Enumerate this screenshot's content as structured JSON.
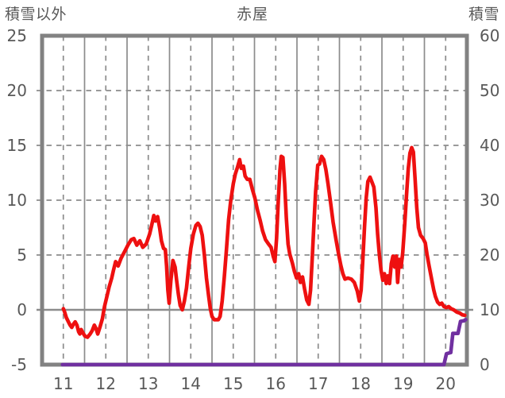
{
  "header": {
    "left_axis_label": "積雪以外",
    "title": "赤屋",
    "right_axis_label": "積雪"
  },
  "chart_data": {
    "type": "line",
    "title": "赤屋",
    "legend": "none",
    "x_axis": {
      "range": [
        11,
        21
      ],
      "tick_labels": [
        "11",
        "12",
        "13",
        "14",
        "15",
        "16",
        "17",
        "18",
        "19",
        "20"
      ],
      "tick_positions": [
        11.5,
        12.5,
        13.5,
        14.5,
        15.5,
        16.5,
        17.5,
        18.5,
        19.5,
        20.5
      ]
    },
    "left_axis": {
      "label": "積雪以外",
      "range": [
        -5,
        25
      ],
      "ticks": [
        25,
        20,
        15,
        10,
        5,
        0,
        -5
      ]
    },
    "right_axis": {
      "label": "積雪",
      "range": [
        0,
        60
      ],
      "ticks": [
        60,
        50,
        40,
        30,
        20,
        10,
        0
      ]
    },
    "grid": {
      "h_dashed_left_values": [
        20,
        15,
        10,
        5
      ],
      "h_solid_left_values": [
        0
      ],
      "v_solid_x": [
        12,
        13,
        14,
        15,
        16,
        17,
        18,
        19,
        20
      ],
      "v_dashed_x": [
        11.5,
        12.5,
        13.5,
        14.5,
        15.5,
        16.5,
        17.5,
        18.5,
        19.5,
        20.5
      ],
      "color": "#8c8c8c",
      "border_color": "#828282"
    },
    "series": [
      {
        "id": "red_line",
        "axis": "left",
        "color": "#ee1010",
        "points": [
          [
            11.5,
            0.1
          ],
          [
            11.53,
            -0.2
          ],
          [
            11.57,
            -0.7
          ],
          [
            11.62,
            -1.1
          ],
          [
            11.66,
            -1.4
          ],
          [
            11.7,
            -1.6
          ],
          [
            11.74,
            -1.3
          ],
          [
            11.78,
            -1.1
          ],
          [
            11.82,
            -1.4
          ],
          [
            11.86,
            -2.0
          ],
          [
            11.89,
            -2.2
          ],
          [
            11.92,
            -1.8
          ],
          [
            11.96,
            -2.1
          ],
          [
            12.01,
            -2.4
          ],
          [
            12.07,
            -2.5
          ],
          [
            12.13,
            -2.2
          ],
          [
            12.18,
            -1.9
          ],
          [
            12.23,
            -1.4
          ],
          [
            12.27,
            -1.7
          ],
          [
            12.31,
            -2.2
          ],
          [
            12.36,
            -1.6
          ],
          [
            12.42,
            -0.8
          ],
          [
            12.47,
            0.3
          ],
          [
            12.53,
            1.3
          ],
          [
            12.58,
            2.1
          ],
          [
            12.64,
            2.9
          ],
          [
            12.68,
            3.6
          ],
          [
            12.73,
            4.4
          ],
          [
            12.79,
            4.0
          ],
          [
            12.86,
            4.7
          ],
          [
            12.94,
            5.3
          ],
          [
            13.02,
            5.9
          ],
          [
            13.1,
            6.4
          ],
          [
            13.16,
            6.5
          ],
          [
            13.23,
            5.9
          ],
          [
            13.3,
            6.3
          ],
          [
            13.37,
            5.7
          ],
          [
            13.45,
            6.0
          ],
          [
            13.53,
            6.9
          ],
          [
            13.58,
            7.7
          ],
          [
            13.63,
            8.6
          ],
          [
            13.67,
            8.1
          ],
          [
            13.72,
            8.5
          ],
          [
            13.77,
            7.4
          ],
          [
            13.81,
            6.3
          ],
          [
            13.86,
            5.6
          ],
          [
            13.9,
            5.5
          ],
          [
            13.93,
            4.0
          ],
          [
            13.96,
            1.8
          ],
          [
            13.99,
            0.6
          ],
          [
            14.03,
            2.6
          ],
          [
            14.08,
            4.5
          ],
          [
            14.13,
            3.9
          ],
          [
            14.17,
            2.6
          ],
          [
            14.21,
            1.4
          ],
          [
            14.25,
            0.4
          ],
          [
            14.3,
            0.0
          ],
          [
            14.35,
            0.8
          ],
          [
            14.4,
            2.0
          ],
          [
            14.45,
            3.9
          ],
          [
            14.5,
            5.6
          ],
          [
            14.56,
            6.9
          ],
          [
            14.62,
            7.7
          ],
          [
            14.67,
            7.9
          ],
          [
            14.72,
            7.6
          ],
          [
            14.77,
            6.8
          ],
          [
            14.82,
            5.0
          ],
          [
            14.87,
            2.9
          ],
          [
            14.92,
            1.3
          ],
          [
            14.96,
            0.1
          ],
          [
            15.0,
            -0.6
          ],
          [
            15.05,
            -0.9
          ],
          [
            15.1,
            -0.9
          ],
          [
            15.15,
            -0.9
          ],
          [
            15.19,
            -0.6
          ],
          [
            15.24,
            0.8
          ],
          [
            15.29,
            3.0
          ],
          [
            15.34,
            5.5
          ],
          [
            15.39,
            8.2
          ],
          [
            15.44,
            9.9
          ],
          [
            15.5,
            11.5
          ],
          [
            15.55,
            12.4
          ],
          [
            15.6,
            13.0
          ],
          [
            15.65,
            13.7
          ],
          [
            15.69,
            12.9
          ],
          [
            15.74,
            13.1
          ],
          [
            15.78,
            12.2
          ],
          [
            15.83,
            11.9
          ],
          [
            15.89,
            11.9
          ],
          [
            15.95,
            11.0
          ],
          [
            16.01,
            10.2
          ],
          [
            16.07,
            9.1
          ],
          [
            16.13,
            8.2
          ],
          [
            16.19,
            7.2
          ],
          [
            16.26,
            6.4
          ],
          [
            16.33,
            6.0
          ],
          [
            16.39,
            5.7
          ],
          [
            16.44,
            4.9
          ],
          [
            16.48,
            4.4
          ],
          [
            16.52,
            6.5
          ],
          [
            16.56,
            10.0
          ],
          [
            16.6,
            12.8
          ],
          [
            16.63,
            14.0
          ],
          [
            16.67,
            13.9
          ],
          [
            16.71,
            11.5
          ],
          [
            16.75,
            8.4
          ],
          [
            16.79,
            6.0
          ],
          [
            16.83,
            5.1
          ],
          [
            16.89,
            4.3
          ],
          [
            16.94,
            3.5
          ],
          [
            16.99,
            2.9
          ],
          [
            17.04,
            3.3
          ],
          [
            17.08,
            2.5
          ],
          [
            17.13,
            3.0
          ],
          [
            17.18,
            1.9
          ],
          [
            17.23,
            0.9
          ],
          [
            17.28,
            0.5
          ],
          [
            17.32,
            1.8
          ],
          [
            17.36,
            4.8
          ],
          [
            17.4,
            7.9
          ],
          [
            17.44,
            10.8
          ],
          [
            17.49,
            13.2
          ],
          [
            17.53,
            13.3
          ],
          [
            17.58,
            14.0
          ],
          [
            17.63,
            13.7
          ],
          [
            17.68,
            12.8
          ],
          [
            17.73,
            11.5
          ],
          [
            17.79,
            9.8
          ],
          [
            17.85,
            8.0
          ],
          [
            17.92,
            6.4
          ],
          [
            17.98,
            5.1
          ],
          [
            18.03,
            4.1
          ],
          [
            18.08,
            3.3
          ],
          [
            18.13,
            2.8
          ],
          [
            18.2,
            2.9
          ],
          [
            18.28,
            2.8
          ],
          [
            18.35,
            2.5
          ],
          [
            18.42,
            1.7
          ],
          [
            18.47,
            0.8
          ],
          [
            18.51,
            1.8
          ],
          [
            18.55,
            4.5
          ],
          [
            18.59,
            7.6
          ],
          [
            18.63,
            10.2
          ],
          [
            18.67,
            11.7
          ],
          [
            18.72,
            12.1
          ],
          [
            18.77,
            11.6
          ],
          [
            18.81,
            11.2
          ],
          [
            18.86,
            9.3
          ],
          [
            18.9,
            6.9
          ],
          [
            18.94,
            5.0
          ],
          [
            18.98,
            3.6
          ],
          [
            19.02,
            2.7
          ],
          [
            19.06,
            3.3
          ],
          [
            19.1,
            2.4
          ],
          [
            19.14,
            3.1
          ],
          [
            19.18,
            2.4
          ],
          [
            19.22,
            4.2
          ],
          [
            19.26,
            4.9
          ],
          [
            19.3,
            3.9
          ],
          [
            19.34,
            4.9
          ],
          [
            19.37,
            2.5
          ],
          [
            19.41,
            4.6
          ],
          [
            19.45,
            3.9
          ],
          [
            19.49,
            5.2
          ],
          [
            19.54,
            8.0
          ],
          [
            19.58,
            10.5
          ],
          [
            19.62,
            12.9
          ],
          [
            19.66,
            14.3
          ],
          [
            19.7,
            14.8
          ],
          [
            19.74,
            14.4
          ],
          [
            19.78,
            12.0
          ],
          [
            19.82,
            9.3
          ],
          [
            19.86,
            7.5
          ],
          [
            19.91,
            6.8
          ],
          [
            19.97,
            6.5
          ],
          [
            20.02,
            6.1
          ],
          [
            20.06,
            5.1
          ],
          [
            20.1,
            4.2
          ],
          [
            20.14,
            3.4
          ],
          [
            20.18,
            2.6
          ],
          [
            20.22,
            1.8
          ],
          [
            20.26,
            1.2
          ],
          [
            20.31,
            0.7
          ],
          [
            20.36,
            0.5
          ],
          [
            20.41,
            0.6
          ],
          [
            20.46,
            0.3
          ],
          [
            20.52,
            0.2
          ],
          [
            20.57,
            0.3
          ],
          [
            20.63,
            0.1
          ],
          [
            20.69,
            0.0
          ],
          [
            20.76,
            -0.2
          ],
          [
            20.83,
            -0.3
          ],
          [
            20.89,
            -0.45
          ],
          [
            20.95,
            -0.5
          ]
        ]
      },
      {
        "id": "purple_line",
        "axis": "right",
        "color": "#7030a0",
        "points": [
          [
            11.48,
            0
          ],
          [
            20.46,
            0
          ],
          [
            20.52,
            2.0
          ],
          [
            20.62,
            2.2
          ],
          [
            20.67,
            5.7
          ],
          [
            20.79,
            5.7
          ],
          [
            20.85,
            7.9
          ],
          [
            20.93,
            8.0
          ],
          [
            20.97,
            8.2
          ]
        ]
      }
    ]
  }
}
